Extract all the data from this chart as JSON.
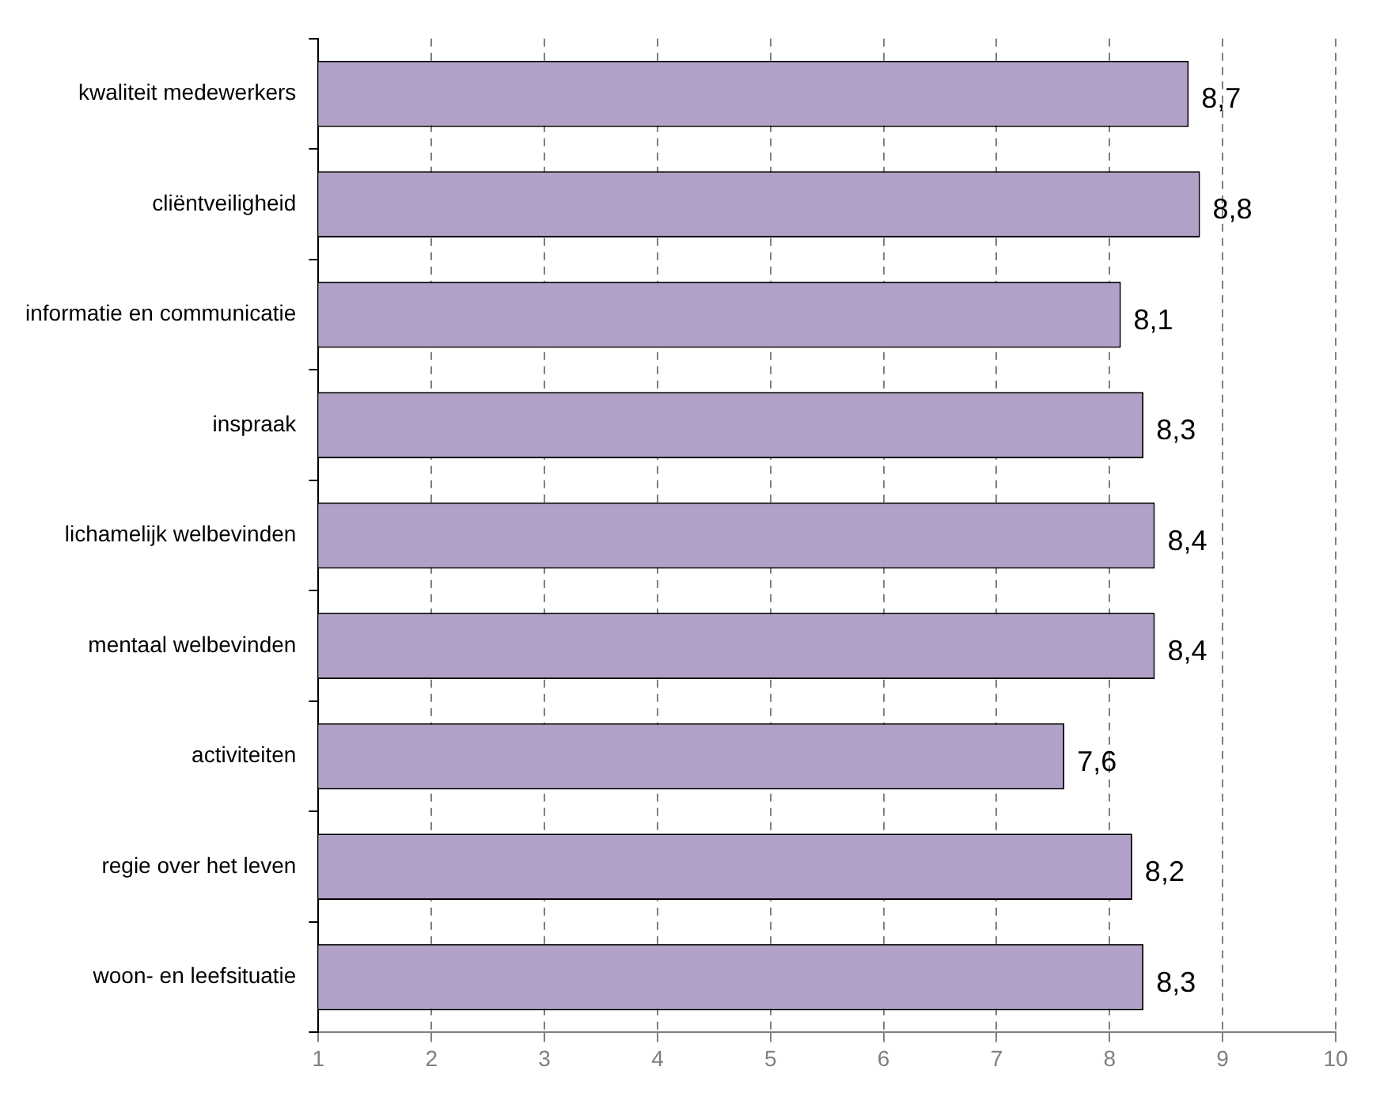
{
  "chart_data": {
    "type": "bar",
    "orientation": "horizontal",
    "categories": [
      "kwaliteit medewerkers",
      "cliëntveiligheid",
      "informatie en communicatie",
      "inspraak",
      "lichamelijk welbevinden",
      "mentaal welbevinden",
      "activiteiten",
      "regie over het leven",
      "woon- en leefsituatie"
    ],
    "values": [
      8.7,
      8.8,
      8.1,
      8.3,
      8.4,
      8.4,
      7.6,
      8.2,
      8.3
    ],
    "value_labels": [
      "8,7",
      "8,8",
      "8,1",
      "8,3",
      "8,4",
      "8,4",
      "7,6",
      "8,2",
      "8,3"
    ],
    "color": "#b1a0c7",
    "xlim": [
      1,
      10
    ],
    "xticks": [
      1,
      2,
      3,
      4,
      5,
      6,
      7,
      8,
      9,
      10
    ],
    "grid": "x",
    "line_style": "dashed",
    "legend": false
  }
}
